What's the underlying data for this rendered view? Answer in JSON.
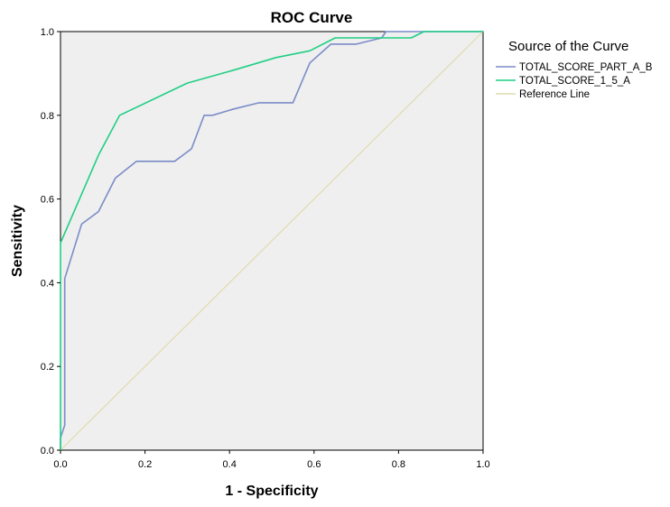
{
  "chart_data": {
    "type": "line",
    "title": "ROC Curve",
    "xlabel": "1 - Specificity",
    "ylabel": "Sensitivity",
    "xlim": [
      0,
      1
    ],
    "ylim": [
      0,
      1
    ],
    "xticks": [
      "0.0",
      "0.2",
      "0.4",
      "0.6",
      "0.8",
      "1.0"
    ],
    "yticks": [
      "0.0",
      "0.2",
      "0.4",
      "0.6",
      "0.8",
      "1.0"
    ],
    "legend_title": "Source of the Curve",
    "legend_position": "right",
    "series": [
      {
        "name": "TOTAL_SCORE_PART_A_B",
        "color": "#7b8cc8",
        "x": [
          0,
          0,
          0.01,
          0.01,
          0.05,
          0.09,
          0.13,
          0.18,
          0.27,
          0.31,
          0.34,
          0.36,
          0.41,
          0.47,
          0.55,
          0.59,
          0.64,
          0.7,
          0.76,
          0.77,
          0.85,
          1.0
        ],
        "y": [
          0,
          0.03,
          0.06,
          0.41,
          0.54,
          0.57,
          0.65,
          0.69,
          0.69,
          0.72,
          0.8,
          0.8,
          0.815,
          0.83,
          0.83,
          0.925,
          0.97,
          0.97,
          0.985,
          1.0,
          1.0,
          1.0
        ]
      },
      {
        "name": "TOTAL_SCORE_1_5_A",
        "color": "#1fcf84",
        "x": [
          0,
          0,
          0.09,
          0.14,
          0.3,
          0.41,
          0.51,
          0.59,
          0.65,
          0.83,
          0.86,
          1.0
        ],
        "y": [
          0,
          0.495,
          0.705,
          0.8,
          0.877,
          0.908,
          0.938,
          0.954,
          0.985,
          0.985,
          1.0,
          1.0
        ]
      },
      {
        "name": "Reference Line",
        "color": "#dfdcae",
        "x": [
          0,
          1
        ],
        "y": [
          0,
          1
        ]
      }
    ]
  }
}
